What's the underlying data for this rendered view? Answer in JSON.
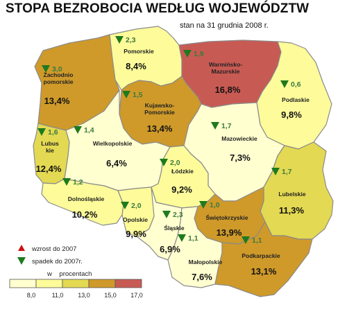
{
  "title": "STOPA BEZROBOCIA WEDŁUG WOJEWÓDZTW",
  "subtitle": "stan na 31 grudnia 2008 r.",
  "colors": {
    "below_8": "#ffffd0",
    "8_11": "#fdfb9a",
    "11_13": "#e3d952",
    "13_15": "#cf9a2a",
    "15_17": "#c85a54",
    "border": "#8a8a8a",
    "arrow_down": "#1e7a1e",
    "arrow_up": "#cc1111",
    "change_text": "#3d7a3d"
  },
  "regions": [
    {
      "id": "zachodniopomorskie",
      "name_lines": [
        "Zachodnio",
        "pomorskie"
      ],
      "rate": "13,4%",
      "change": "3,0",
      "trend": "down",
      "class": "13_15"
    },
    {
      "id": "pomorskie",
      "name_lines": [
        "Pomorskie"
      ],
      "rate": "8,4%",
      "change": "2,3",
      "trend": "down",
      "class": "8_11"
    },
    {
      "id": "warminsko-mazurskie",
      "name_lines": [
        "Warmińsko-",
        "Mazurskie"
      ],
      "rate": "16,8%",
      "change": "1,9",
      "trend": "down",
      "class": "15_17"
    },
    {
      "id": "podlaskie",
      "name_lines": [
        "Podlaskie"
      ],
      "rate": "9,8%",
      "change": "0,6",
      "trend": "down",
      "class": "8_11"
    },
    {
      "id": "kujawsko-pomorskie",
      "name_lines": [
        "Kujawsko-",
        "Pomorskie"
      ],
      "rate": "13,4%",
      "change": "1,5",
      "trend": "down",
      "class": "13_15"
    },
    {
      "id": "lubuskie",
      "name_lines": [
        "Lubus",
        "kie"
      ],
      "rate": "12,4%",
      "change": "1,6",
      "trend": "down",
      "class": "11_13"
    },
    {
      "id": "wielkopolskie",
      "name_lines": [
        "Wielkopolskie"
      ],
      "rate": "6,4%",
      "change": "1,4",
      "trend": "down",
      "class": "below_8"
    },
    {
      "id": "mazowieckie",
      "name_lines": [
        "Mazowieckie"
      ],
      "rate": "7,3%",
      "change": "1,7",
      "trend": "down",
      "class": "below_8"
    },
    {
      "id": "lodzkie",
      "name_lines": [
        "Łódzkie"
      ],
      "rate": "9,2%",
      "change": "2,0",
      "trend": "down",
      "class": "8_11"
    },
    {
      "id": "lubelskie",
      "name_lines": [
        "Lubelskie"
      ],
      "rate": "11,3%",
      "change": "1,7",
      "trend": "down",
      "class": "11_13"
    },
    {
      "id": "dolnoslaskie",
      "name_lines": [
        "Dolnośląskie"
      ],
      "rate": "10,2%",
      "change": "1,2",
      "trend": "down",
      "class": "8_11"
    },
    {
      "id": "opolskie",
      "name_lines": [
        "Opolskie"
      ],
      "rate": "9,9%",
      "change": "2,0",
      "trend": "down",
      "class": "8_11"
    },
    {
      "id": "slaskie",
      "name_lines": [
        "Śląskie"
      ],
      "rate": "6,9%",
      "change": "2,3",
      "trend": "down",
      "class": "below_8"
    },
    {
      "id": "swietokrzyskie",
      "name_lines": [
        "Świętokrzyskie"
      ],
      "rate": "13,9%",
      "change": "1,0",
      "trend": "down",
      "class": "13_15"
    },
    {
      "id": "malopolskie",
      "name_lines": [
        "Małopolskie"
      ],
      "rate": "7,6%",
      "change": "1,1",
      "trend": "down",
      "class": "below_8"
    },
    {
      "id": "podkarpackie",
      "name_lines": [
        "Podkarpackie"
      ],
      "rate": "13,1%",
      "change": "1,1",
      "trend": "down",
      "class": "13_15"
    }
  ],
  "legend": {
    "up_label": "wzrost do 2007",
    "down_label": "spadek do 2007r.",
    "unit_label": "w    procentach",
    "ticks": [
      "8,0",
      "11,0",
      "13,0",
      "15,0",
      "17,0"
    ],
    "bins": [
      "below_8",
      "8_11",
      "11_13",
      "13_15",
      "15_17"
    ]
  }
}
